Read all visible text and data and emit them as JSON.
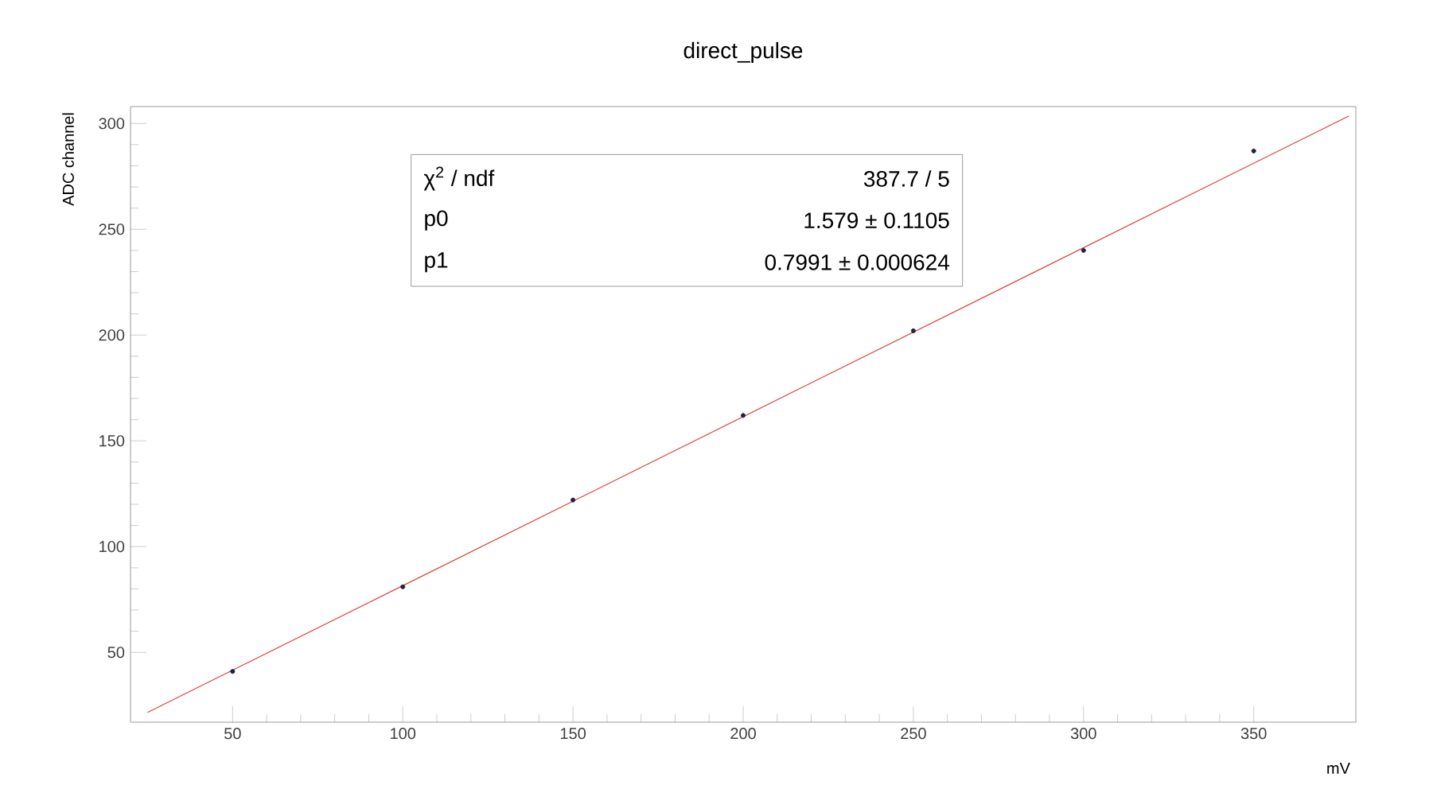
{
  "chart_data": {
    "type": "scatter",
    "title": "direct_pulse",
    "xlabel": "mV",
    "ylabel": "ADC channel",
    "xlim": [
      20,
      380
    ],
    "ylim": [
      17,
      308
    ],
    "xticks": [
      50,
      100,
      150,
      200,
      250,
      300,
      350
    ],
    "yticks": [
      50,
      100,
      150,
      200,
      250,
      300
    ],
    "grid": false,
    "series": [
      {
        "color": "#202040",
        "marker": "circle",
        "x": [
          50,
          100,
          150,
          200,
          250,
          300,
          350
        ],
        "values": [
          41,
          81,
          122,
          162,
          202,
          240,
          287
        ]
      },
      {
        "type": "line",
        "color": "#e04040",
        "marker": "none",
        "line_style": "solid",
        "x": [
          25,
          378
        ],
        "values": [
          21.6,
          303.6
        ]
      }
    ],
    "annotations": [
      "χ$^{2}$ / ndf",
      "387.7 / 5",
      "p0",
      "1.579 ± 0.1105",
      "p1",
      "0.7991 ± 0.000624"
    ]
  }
}
